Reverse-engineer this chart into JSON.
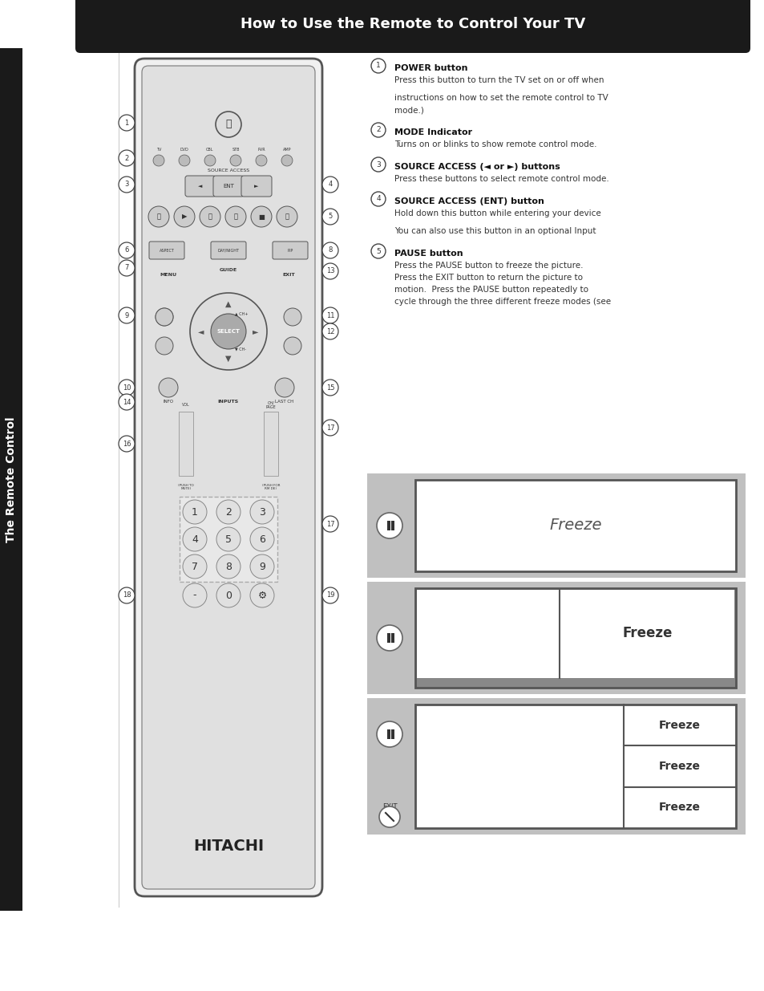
{
  "title": "How to Use the Remote to Control Your TV",
  "title_bg": "#1a1a1a",
  "title_color": "#ffffff",
  "page_bg": "#ffffff",
  "sidebar_text": "The Remote Control",
  "sidebar_bg": "#1a1a1a",
  "sidebar_color": "#ffffff",
  "items": [
    {
      "num": "1",
      "heading": "POWER button",
      "body_bold": "",
      "lines": [
        "Press this button to turn the TV set on or off when",
        "",
        "instructions on how to set the remote control to TV",
        "mode.)"
      ]
    },
    {
      "num": "2",
      "heading": "MODE Indicator",
      "lines": [
        "Turns on or blinks to show remote control mode."
      ]
    },
    {
      "num": "3",
      "heading": "SOURCE ACCESS (◄ or ►) buttons",
      "lines": [
        "Press these buttons to select remote control mode."
      ]
    },
    {
      "num": "4",
      "heading": "SOURCE ACCESS (ENT) button",
      "lines": [
        "Hold down this button while entering your device",
        "",
        "You can also use this button in an optional Input"
      ]
    },
    {
      "num": "5",
      "heading": "PAUSE button",
      "lines": [
        "Press the PAUSE button to freeze the picture.",
        "Press the EXIT button to return the picture to",
        "motion.  Press the PAUSE button repeatedly to",
        "cycle through the three different freeze modes (see"
      ]
    }
  ],
  "diag_bg": "#c0c0c0",
  "diag_screen_bg": "#ffffff",
  "diag_border": "#555555",
  "diag_dark": "#888888",
  "freeze_label": "Freeze",
  "tv_diagrams": [
    {
      "layout": "single",
      "label": "Freeze"
    },
    {
      "layout": "half",
      "label": "Freeze"
    },
    {
      "layout": "thirds",
      "labels": [
        "Freeze",
        "Freeze",
        "Freeze"
      ]
    }
  ]
}
